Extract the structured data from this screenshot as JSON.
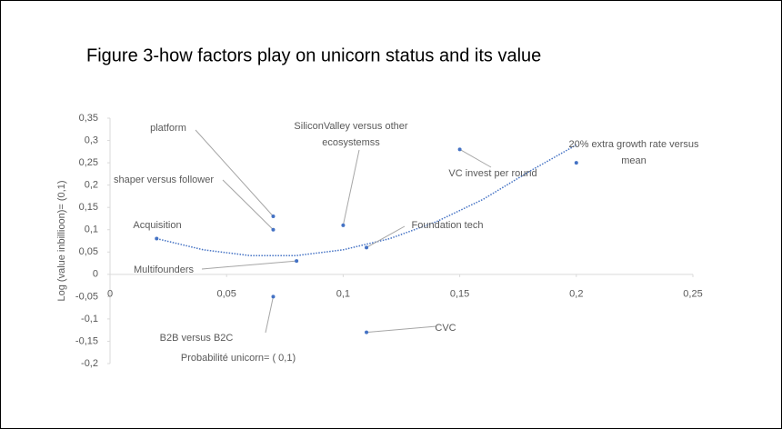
{
  "chart_data": {
    "type": "scatter",
    "title": "Figure 3-how factors  play on unicorn status and its value",
    "x_label": "Probabilité unicorn= ( 0,1)",
    "y_label": "Log (value inbillioon)= (0,1)",
    "xlim": [
      0,
      0.25
    ],
    "ylim": [
      -0.2,
      0.35
    ],
    "xticks": [
      0,
      {
        "value": 0.05,
        "label": "0,05"
      },
      {
        "value": 0.1,
        "label": "0,1"
      },
      {
        "value": 0.15,
        "label": "0,15"
      },
      {
        "value": 0.2,
        "label": "0,2"
      },
      {
        "value": 0.25,
        "label": "0,25"
      }
    ],
    "yticks": [
      {
        "value": -0.2,
        "label": "-0,2"
      },
      {
        "value": -0.15,
        "label": "-0,15"
      },
      {
        "value": -0.1,
        "label": "-0,1"
      },
      {
        "value": -0.05,
        "label": "-0,05"
      },
      0,
      {
        "value": 0.05,
        "label": "0,05"
      },
      {
        "value": 0.1,
        "label": "0,1"
      },
      {
        "value": 0.15,
        "label": "0,15"
      },
      {
        "value": 0.2,
        "label": "0,2"
      },
      {
        "value": 0.25,
        "label": "0,25"
      },
      {
        "value": 0.3,
        "label": "0,3"
      },
      {
        "value": 0.35,
        "label": "0,35"
      }
    ],
    "color": "#4472c4",
    "x": [
      0.07,
      0.07,
      0.02,
      0.08,
      0.1,
      0.11,
      0.15,
      0.2,
      0.07,
      0.11
    ],
    "values": [
      0.13,
      0.1,
      0.08,
      0.03,
      0.11,
      0.06,
      0.28,
      0.25,
      -0.05,
      -0.13
    ],
    "labels": [
      [
        "platform"
      ],
      [
        "shaper versus follower"
      ],
      [
        "Acquisition"
      ],
      [
        "Multifounders"
      ],
      [
        "SiliconValley versus other",
        "ecosystemss"
      ],
      [
        "Foundation tech"
      ],
      [
        "VC invest per round"
      ],
      [
        "20% extra growth rate versus",
        "mean"
      ],
      [
        "B2B versus B2C"
      ],
      [
        "CVC"
      ]
    ],
    "trendline": {
      "x": [
        0.02,
        0.04,
        0.06,
        0.08,
        0.1,
        0.12,
        0.14,
        0.16,
        0.18,
        0.2
      ],
      "values": [
        0.08,
        0.055,
        0.042,
        0.042,
        0.055,
        0.08,
        0.118,
        0.168,
        0.231,
        0.29
      ]
    }
  }
}
